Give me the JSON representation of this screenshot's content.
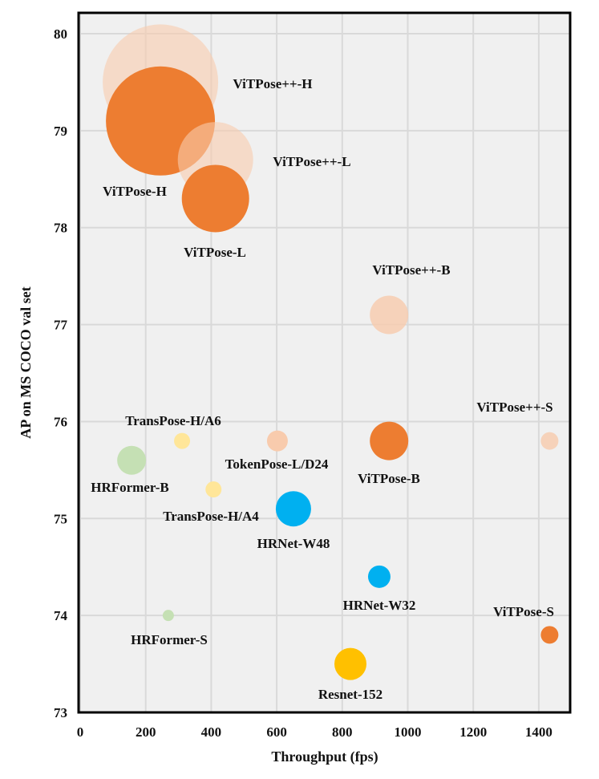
{
  "chart_data": {
    "type": "scatter",
    "subtype": "bubble",
    "title": "",
    "xlabel": "Throughput (fps)",
    "ylabel": "AP on MS COCO val set",
    "xlim": [
      0,
      1500
    ],
    "ylim": [
      73,
      80.2
    ],
    "xticks": [
      "0",
      "200",
      "400",
      "600",
      "800",
      "1000",
      "1200",
      "1400"
    ],
    "yticks": [
      "73",
      "74",
      "75",
      "76",
      "77",
      "78",
      "79",
      "80"
    ],
    "grid": true,
    "plot_background": "#F0F0F0",
    "points": [
      {
        "label": "ViTPose++-H",
        "x": 245,
        "y": 79.5,
        "size": 72,
        "color": "#F8CBAD",
        "opacity": 0.6
      },
      {
        "label": "ViTPose-H",
        "x": 245,
        "y": 79.1,
        "size": 68,
        "color": "#ED7D31",
        "opacity": 1
      },
      {
        "label": "ViTPose++-L",
        "x": 413,
        "y": 78.7,
        "size": 47,
        "color": "#F8CBAD",
        "opacity": 0.6
      },
      {
        "label": "ViTPose-L",
        "x": 413,
        "y": 78.3,
        "size": 42,
        "color": "#ED7D31",
        "opacity": 1
      },
      {
        "label": "ViTPose++-B",
        "x": 943,
        "y": 77.1,
        "size": 24,
        "color": "#F8CBAD",
        "opacity": 0.8
      },
      {
        "label": "ViTPose-B",
        "x": 943,
        "y": 75.8,
        "size": 24,
        "color": "#ED7D31",
        "opacity": 1
      },
      {
        "label": "ViTPose++-S",
        "x": 1433,
        "y": 75.8,
        "size": 11,
        "color": "#F8CBAD",
        "opacity": 0.8
      },
      {
        "label": "ViTPose-S",
        "x": 1433,
        "y": 73.8,
        "size": 11,
        "color": "#ED7D31",
        "opacity": 1
      },
      {
        "label": "TransPose-H/A6",
        "x": 311,
        "y": 75.8,
        "size": 10,
        "color": "#FFE699",
        "opacity": 1
      },
      {
        "label": "TokenPose-L/D24",
        "x": 602,
        "y": 75.8,
        "size": 13,
        "color": "#F8CBAD",
        "opacity": 1
      },
      {
        "label": "HRFormer-B",
        "x": 157,
        "y": 75.6,
        "size": 18,
        "color": "#C5E0B4",
        "opacity": 1
      },
      {
        "label": "TransPose-H/A4",
        "x": 407,
        "y": 75.3,
        "size": 10,
        "color": "#FFE699",
        "opacity": 1
      },
      {
        "label": "HRNet-W48",
        "x": 651,
        "y": 75.1,
        "size": 22,
        "color": "#00B0F0",
        "opacity": 1
      },
      {
        "label": "HRNet-W32",
        "x": 913,
        "y": 74.4,
        "size": 14,
        "color": "#00B0F0",
        "opacity": 1
      },
      {
        "label": "HRFormer-S",
        "x": 269,
        "y": 74.0,
        "size": 7,
        "color": "#C5E0B4",
        "opacity": 1
      },
      {
        "label": "Resnet-152",
        "x": 825,
        "y": 73.5,
        "size": 20,
        "color": "#FFC000",
        "opacity": 1
      }
    ]
  }
}
